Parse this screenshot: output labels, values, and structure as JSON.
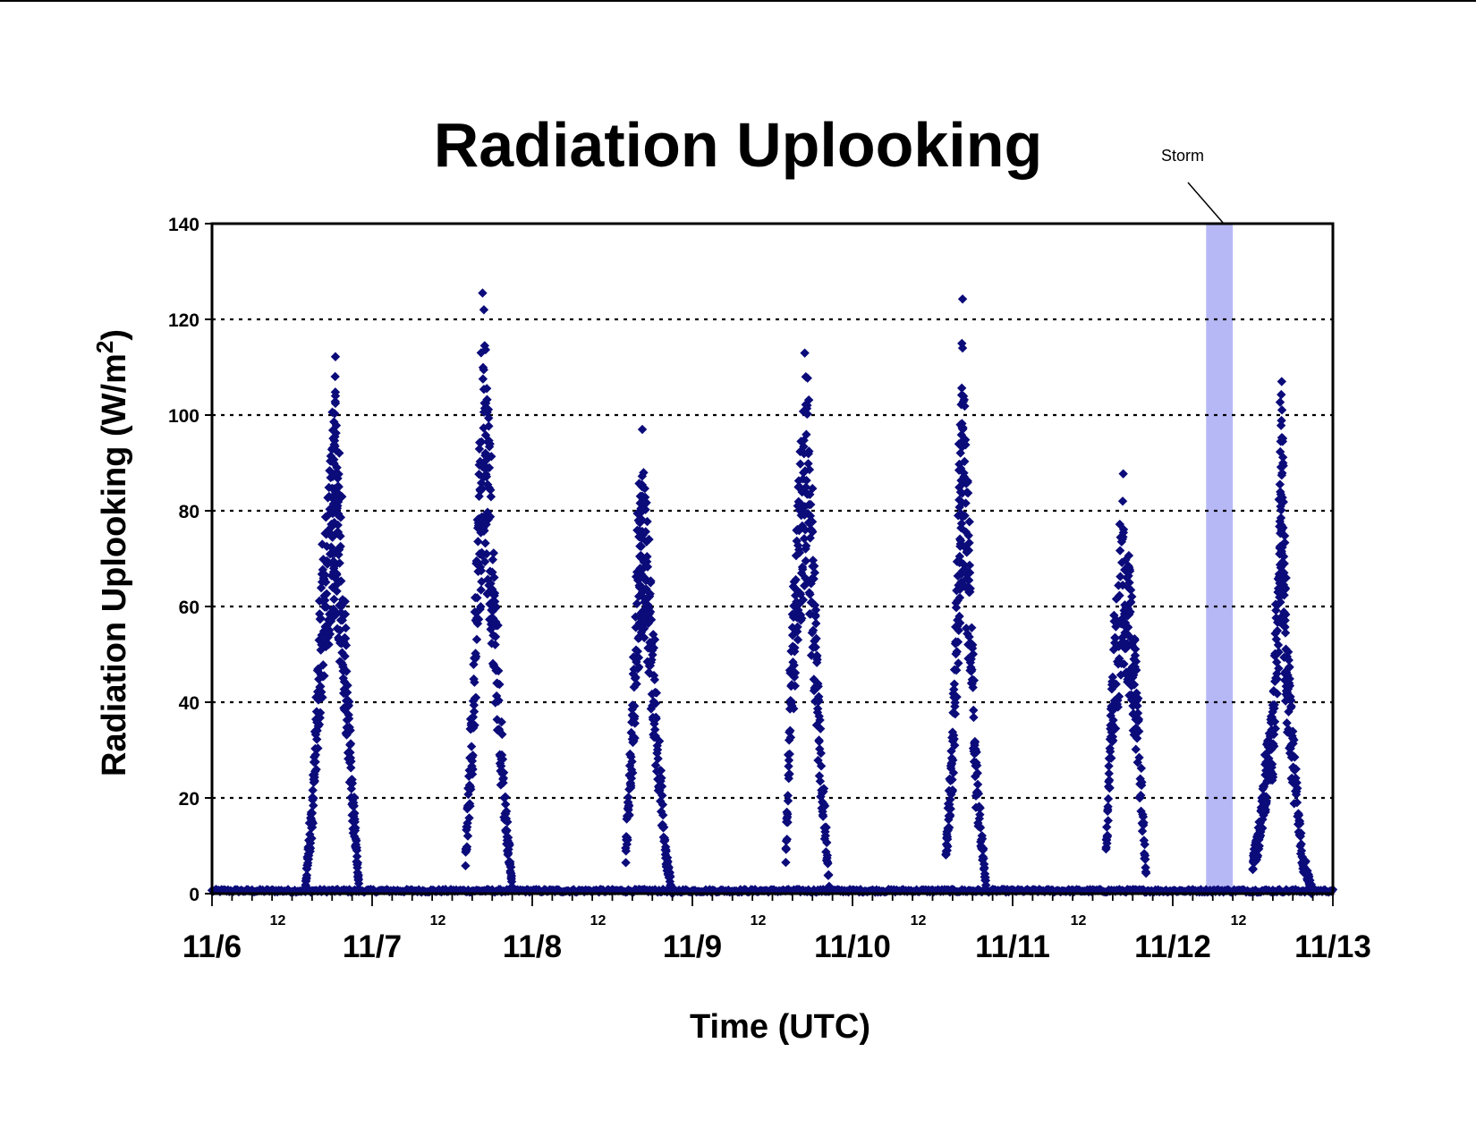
{
  "chart_data": {
    "type": "scatter",
    "title": "Radiation Uplooking",
    "xlabel": "Time (UTC)",
    "ylabel": "Radiation Uplooking (W/m",
    "ylabel_superscript": "2",
    "ylabel_suffix": ")",
    "ylim": [
      0,
      140
    ],
    "yticks": [
      0,
      20,
      40,
      60,
      80,
      100,
      120,
      140
    ],
    "xlim": [
      "11/6 00:00",
      "11/13 00:00"
    ],
    "x_major_ticks": [
      "11/6",
      "11/7",
      "11/8",
      "11/9",
      "11/10",
      "11/11",
      "11/12",
      "11/13"
    ],
    "x_minor_label": "12",
    "grid": "horizontal dotted",
    "marker": "diamond",
    "marker_color": "#0b0b7a",
    "annotation": {
      "text": "Storm",
      "start": "11/12 05:00",
      "end": "11/12 09:00",
      "color": "#b6b8f6"
    },
    "series": [
      {
        "points": [
          [
            "11/6 14:00",
            2
          ],
          [
            "11/6 15:00",
            20
          ],
          [
            "11/6 16:00",
            55
          ],
          [
            "11/6 17:00",
            80
          ],
          [
            "11/6 18:00",
            95
          ],
          [
            "11/6 18:30",
            104
          ],
          [
            "11/6 19:00",
            88
          ],
          [
            "11/6 20:00",
            60
          ],
          [
            "11/6 21:00",
            25
          ],
          [
            "11/6 22:00",
            3
          ],
          [
            "11/7 14:00",
            10
          ],
          [
            "11/7 15:00",
            40
          ],
          [
            "11/7 16:00",
            90
          ],
          [
            "11/7 16:45",
            122
          ],
          [
            "11/7 17:30",
            100
          ],
          [
            "11/7 18:30",
            60
          ],
          [
            "11/7 20:00",
            20
          ],
          [
            "11/7 21:00",
            2
          ],
          [
            "11/8 14:00",
            10
          ],
          [
            "11/8 15:00",
            40
          ],
          [
            "11/8 16:00",
            80
          ],
          [
            "11/8 16:30",
            97
          ],
          [
            "11/8 17:30",
            75
          ],
          [
            "11/8 18:30",
            45
          ],
          [
            "11/8 20:00",
            10
          ],
          [
            "11/8 21:00",
            1
          ],
          [
            "11/9 14:00",
            10
          ],
          [
            "11/9 15:00",
            60
          ],
          [
            "11/9 16:00",
            90
          ],
          [
            "11/9 17:00",
            108
          ],
          [
            "11/9 18:00",
            80
          ],
          [
            "11/9 19:00",
            40
          ],
          [
            "11/9 20:30",
            2
          ],
          [
            "11/10 14:00",
            10
          ],
          [
            "11/10 15:00",
            35
          ],
          [
            "11/10 16:00",
            90
          ],
          [
            "11/10 16:30",
            114
          ],
          [
            "11/10 17:30",
            80
          ],
          [
            "11/10 18:30",
            30
          ],
          [
            "11/10 20:00",
            2
          ],
          [
            "11/11 14:00",
            10
          ],
          [
            "11/11 15:00",
            50
          ],
          [
            "11/11 16:30",
            82
          ],
          [
            "11/11 17:30",
            70
          ],
          [
            "11/11 18:30",
            50
          ],
          [
            "11/11 20:00",
            5
          ],
          [
            "11/12 12:00",
            8
          ],
          [
            "11/12 13:00",
            15
          ],
          [
            "11/12 14:00",
            30
          ],
          [
            "11/12 15:00",
            40
          ],
          [
            "11/12 16:00",
            85
          ],
          [
            "11/12 16:20",
            107
          ],
          [
            "11/12 17:00",
            60
          ],
          [
            "11/12 18:00",
            35
          ],
          [
            "11/12 19:30",
            8
          ],
          [
            "11/12 21:00",
            1
          ]
        ]
      }
    ]
  }
}
